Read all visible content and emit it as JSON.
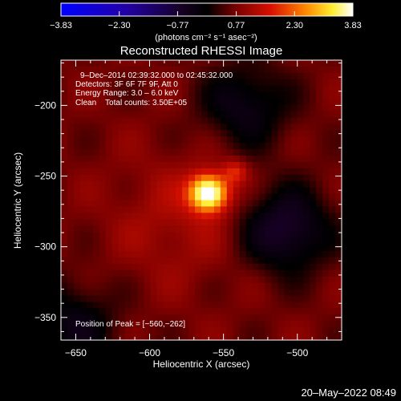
{
  "chart_data": {
    "type": "heatmap",
    "title": "Reconstructed RHESSI Image",
    "xlabel": "Heliocentric X (arcsec)",
    "ylabel": "Heliocentric Y (arcsec)",
    "xlim": [
      -660,
      -470
    ],
    "ylim": [
      -366,
      -168
    ],
    "xticks": [
      -650,
      -600,
      -550,
      -500
    ],
    "yticks": [
      -200,
      -250,
      -300,
      -350
    ],
    "xtick_labels": [
      "−650",
      "−600",
      "−550",
      "−500"
    ],
    "ytick_labels": [
      "−200",
      "−250",
      "−300",
      "−350"
    ],
    "colorbar": {
      "min": -3.83,
      "max": 3.83,
      "ticks": [
        -3.83,
        -2.3,
        -0.77,
        0.77,
        2.3,
        3.83
      ],
      "tick_labels": [
        "−3.83",
        "−2.30",
        "−0.77",
        "0.77",
        "2.30",
        "3.83"
      ],
      "units_label": "(photons cm⁻² s⁻¹ asec⁻²)",
      "colormap": "rhessi-blue-black-red-yellow-white"
    },
    "annotations": [
      "9–Dec–2014 02:39:32.000 to 02:45:32.000",
      "Detectors: 3F 6F 7F 9F, Att 0",
      "Energy Range: 3.0 – 6.0 keV",
      "Clean    Total counts: 3.50E+05"
    ],
    "peak_label": "Position of Peak = [−560,−262]",
    "peak": {
      "x": -560,
      "y": -262
    },
    "sources": [
      {
        "x": -560,
        "y": -262,
        "peak": 3.83,
        "sigma_x": 9,
        "sigma_y": 9
      },
      {
        "x": -542,
        "y": -247,
        "peak": 1.4,
        "sigma_x": 6,
        "sigma_y": 6
      }
    ],
    "background_level": 0.7,
    "background_dark_regions": [
      {
        "x": -508,
        "y": -288,
        "level": -0.8
      },
      {
        "x": -535,
        "y": -200,
        "level": -0.4
      },
      {
        "x": -652,
        "y": -355,
        "level": -0.3
      }
    ]
  },
  "footer": {
    "timestamp": "20–May–2022 08:49"
  }
}
